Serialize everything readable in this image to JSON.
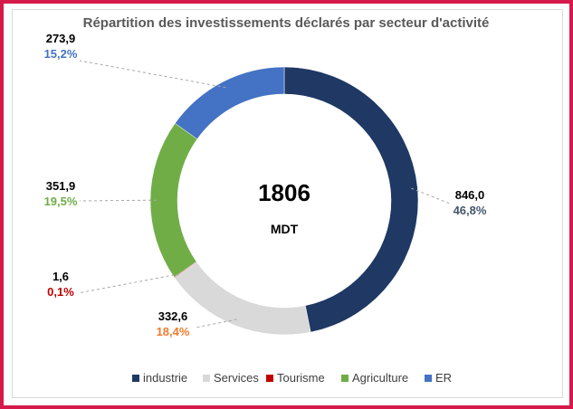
{
  "chart_data": {
    "type": "pie",
    "subtype": "donut",
    "title": "Répartition des investissements  déclarés par secteur d'activité",
    "center_total": "1806",
    "center_unit": "MDT",
    "series": [
      {
        "name": "industrie",
        "value": 846.0,
        "value_label": "846,0",
        "percent_label": "46,8%",
        "color": "#1f3864",
        "label_color": "#44546a"
      },
      {
        "name": "Services",
        "value": 332.6,
        "value_label": "332,6",
        "percent_label": "18,4%",
        "color": "#d9d9d9",
        "label_color": "#ed7d31"
      },
      {
        "name": "Tourisme",
        "value": 1.6,
        "value_label": "1,6",
        "percent_label": "0,1%",
        "color": "#c00000",
        "label_color": "#c00000"
      },
      {
        "name": "Agriculture",
        "value": 351.9,
        "value_label": "351,9",
        "percent_label": "19,5%",
        "color": "#70ad47",
        "label_color": "#70ad47"
      },
      {
        "name": "ER",
        "value": 273.9,
        "value_label": "273,9",
        "percent_label": "15,2%",
        "color": "#4472c4",
        "label_color": "#4472c4"
      }
    ],
    "legend_position": "bottom"
  }
}
